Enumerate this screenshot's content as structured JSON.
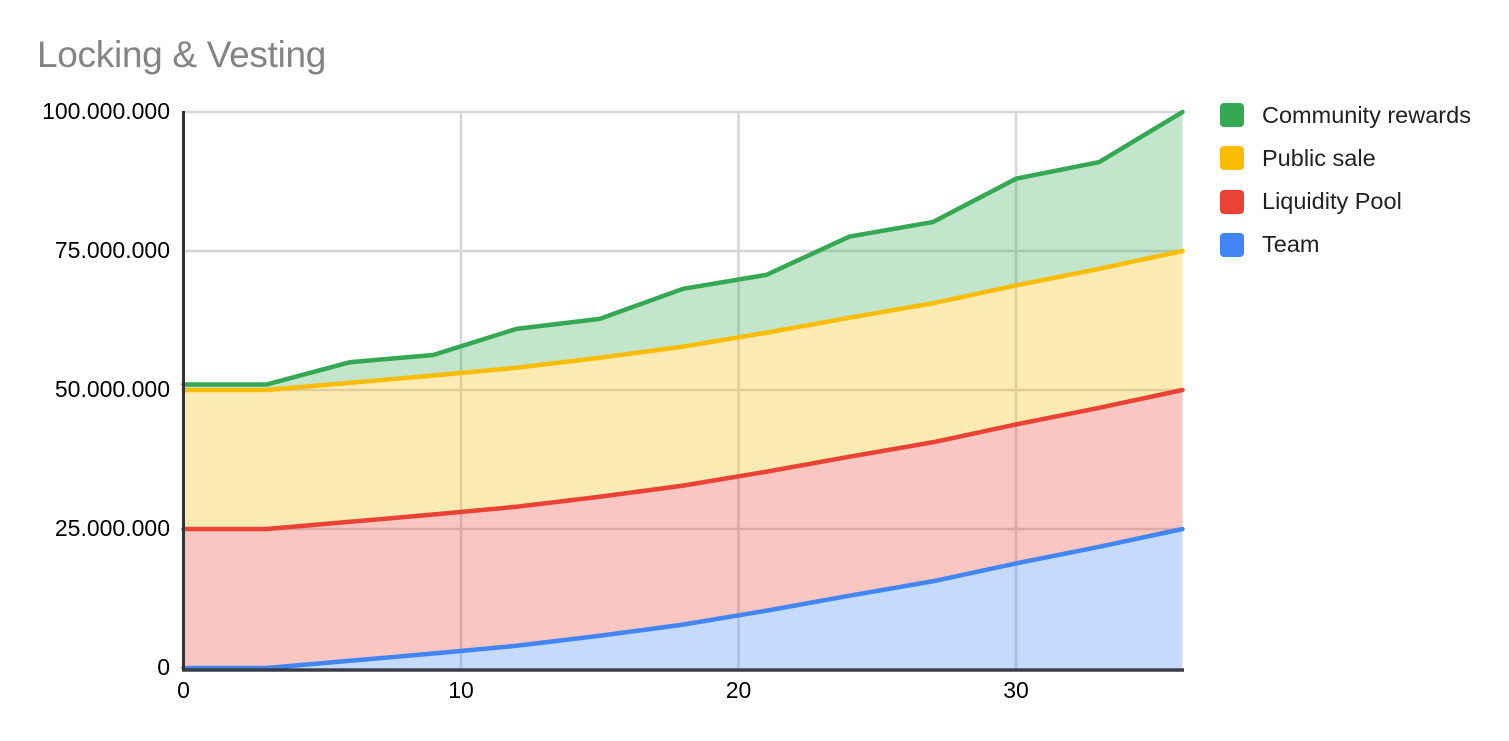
{
  "title": "Locking & Vesting",
  "legend": {
    "position": "right",
    "items": [
      {
        "label": "Community rewards",
        "color": "#34A853"
      },
      {
        "label": "Public sale",
        "color": "#FBBC04"
      },
      {
        "label": "Liquidity Pool",
        "color": "#EA4335"
      },
      {
        "label": "Team",
        "color": "#4285F4"
      }
    ]
  },
  "chart_data": {
    "type": "area",
    "stacked": true,
    "title": "Locking & Vesting",
    "xlabel": "",
    "ylabel": "",
    "x": [
      0,
      3,
      6,
      9,
      12,
      15,
      18,
      21,
      24,
      27,
      30,
      33,
      36
    ],
    "series": [
      {
        "name": "Team",
        "color": "#4285F4",
        "values": [
          0,
          0,
          1.3,
          2.6,
          4.0,
          5.8,
          7.8,
          10.3,
          13.0,
          15.6,
          18.8,
          21.8,
          25.0
        ]
      },
      {
        "name": "Liquidity Pool",
        "color": "#EA4335",
        "values": [
          25,
          25,
          25,
          25,
          25,
          25,
          25,
          25,
          25,
          25,
          25,
          25,
          25
        ]
      },
      {
        "name": "Public sale",
        "color": "#FBBC04",
        "values": [
          25,
          25,
          25,
          25,
          25,
          25,
          25,
          25,
          25,
          25,
          25,
          25,
          25
        ]
      },
      {
        "name": "Community rewards",
        "color": "#34A853",
        "values": [
          1.0,
          1.0,
          3.7,
          3.7,
          7.0,
          7.0,
          10.4,
          10.4,
          14.6,
          14.6,
          19.2,
          19.2,
          25.0
        ]
      }
    ],
    "value_scale": 1000000,
    "xlim": [
      0,
      36
    ],
    "ylim": [
      0,
      100
    ],
    "x_ticks": [
      {
        "value": 0,
        "label": "0"
      },
      {
        "value": 10,
        "label": "10"
      },
      {
        "value": 20,
        "label": "20"
      },
      {
        "value": 30,
        "label": "30"
      }
    ],
    "y_ticks": [
      {
        "value": 0,
        "label": "0"
      },
      {
        "value": 25,
        "label": "25.000.000"
      },
      {
        "value": 50,
        "label": "50.000.000"
      },
      {
        "value": 75,
        "label": "75.000.000"
      },
      {
        "value": 100,
        "label": "100.000.000"
      }
    ],
    "grid": true,
    "legend_position": "right",
    "fill_opacity": 0.3,
    "appearance": {
      "title_color": "#848484",
      "axis_text_color": "#000000",
      "gridline_color": "#d6d6d6",
      "baseline_color": "#373d47",
      "y_axis_line_color": "#333333",
      "background": "#ffffff"
    }
  }
}
